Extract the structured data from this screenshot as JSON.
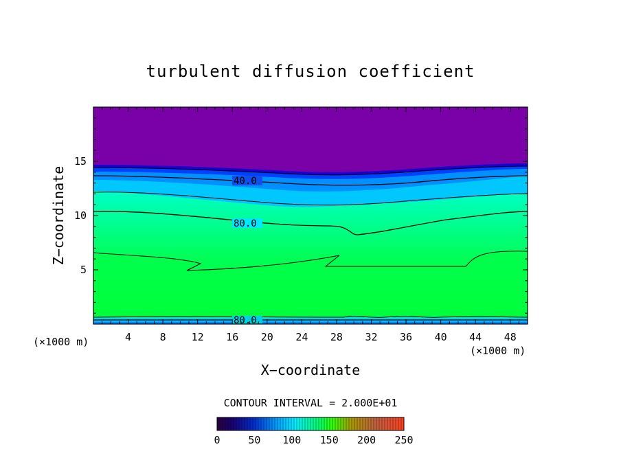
{
  "chart_data": {
    "type": "heatmap",
    "title": "turbulent diffusion coefficient",
    "xlabel": "X−coordinate",
    "ylabel": "Z−coordinate",
    "x_unit_left": "(×1000 m)",
    "x_unit_right": "(×1000 m)",
    "xlim": [
      0,
      50
    ],
    "ylim": [
      0,
      20
    ],
    "x_ticks": [
      "4",
      "8",
      "12",
      "16",
      "20",
      "24",
      "28",
      "32",
      "36",
      "40",
      "44",
      "48"
    ],
    "y_ticks": [
      "5",
      "10",
      "15"
    ],
    "contour_interval_label": "CONTOUR INTERVAL = 2.000E+01",
    "contour_interval": 20,
    "contour_labels": [
      {
        "text": "40.0",
        "x": 17.5,
        "z": 13.1
      },
      {
        "text": "80.0",
        "x": 17.5,
        "z": 9.2
      },
      {
        "text": "80.0",
        "x": 17.5,
        "z": 0.4
      }
    ],
    "colorbar": {
      "range": [
        0,
        250
      ],
      "ticks": [
        "0",
        "50",
        "100",
        "150",
        "200",
        "250"
      ]
    },
    "description_values": {
      "field_peak_value": 160,
      "surface_layer_value": 80,
      "upper_layer_value": 0
    }
  },
  "colors": {
    "upper": "#7a00a8",
    "cyan": "#00f0ff",
    "green": "#00ff3a"
  }
}
